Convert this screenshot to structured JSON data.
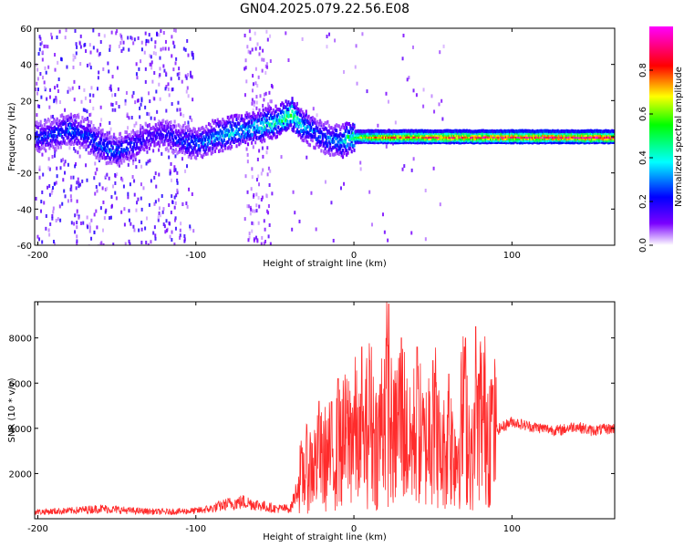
{
  "title": "GN04.2025.079.22.56.E08",
  "colors": {
    "snr_line": "#ff2b2b",
    "colormap": [
      "#ffffff",
      "#7a00ff",
      "#0000ff",
      "#00ffff",
      "#00ff00",
      "#ffff00",
      "#ff0000",
      "#ff00ff"
    ]
  },
  "chart_data": [
    {
      "type": "heatmap",
      "xlabel": "Height of straight line (km)",
      "ylabel": "Frequency (Hz)",
      "xlim": [
        -202,
        165
      ],
      "ylim": [
        -60,
        60
      ],
      "xticks": [
        -200,
        -100,
        0,
        100
      ],
      "yticks": [
        60,
        40,
        20,
        0,
        -20,
        -40,
        -60
      ],
      "grid": false,
      "colorbar": {
        "label": "Normalized spectral amplitude",
        "range": [
          0,
          1
        ],
        "ticks": [
          0.0,
          0.2,
          0.4,
          0.6,
          0.8
        ]
      },
      "ridge": {
        "x": [
          -200,
          -190,
          -180,
          -170,
          -160,
          -150,
          -140,
          -130,
          -120,
          -110,
          -100,
          -90,
          -80,
          -70,
          -60,
          -50,
          -45,
          -40,
          -35,
          -30,
          -20,
          -10,
          0,
          10,
          20,
          40,
          60,
          80,
          100,
          120,
          140,
          165
        ],
        "freq": [
          0,
          2,
          4,
          1,
          -5,
          -8,
          -4,
          0,
          2,
          -2,
          -4,
          0,
          2,
          4,
          6,
          8,
          10,
          13,
          8,
          5,
          0,
          -3,
          0,
          0,
          0,
          0,
          0,
          0,
          0,
          0,
          0,
          0
        ],
        "amplitude": [
          0.25,
          0.28,
          0.3,
          0.28,
          0.28,
          0.3,
          0.22,
          0.18,
          0.2,
          0.25,
          0.3,
          0.35,
          0.38,
          0.38,
          0.4,
          0.45,
          0.5,
          0.55,
          0.45,
          0.35,
          0.3,
          0.35,
          0.6,
          0.75,
          0.8,
          0.85,
          0.88,
          0.9,
          0.92,
          0.93,
          0.94,
          0.95
        ]
      }
    },
    {
      "type": "line",
      "xlabel": "Height of straight line (km)",
      "ylabel": "SNR (10 * v/v)",
      "xlim": [
        -202,
        165
      ],
      "ylim": [
        0,
        9600
      ],
      "xticks": [
        -200,
        -100,
        0,
        100
      ],
      "yticks": [
        2000,
        4000,
        6000,
        8000
      ],
      "grid": false,
      "series": [
        {
          "color": "#ff2b2b",
          "x": [
            -202,
            -180,
            -160,
            -140,
            -120,
            -100,
            -90,
            -80,
            -70,
            -60,
            -50,
            -40,
            -36,
            -34,
            -30,
            -20,
            -10,
            0,
            5,
            10,
            15,
            20,
            25,
            30,
            35,
            40,
            45,
            50,
            55,
            60,
            65,
            70,
            75,
            80,
            85,
            90,
            100,
            110,
            120,
            130,
            140,
            150,
            165
          ],
          "values": [
            300,
            350,
            450,
            350,
            300,
            350,
            450,
            650,
            750,
            600,
            450,
            450,
            1300,
            1800,
            2200,
            2600,
            3000,
            4000,
            2800,
            4500,
            3200,
            5500,
            3300,
            5000,
            3000,
            4200,
            3000,
            5000,
            2600,
            3500,
            2900,
            4800,
            2600,
            4700,
            4200,
            3900,
            4300,
            4100,
            4000,
            3900,
            4100,
            3900,
            4000
          ],
          "spikes": [
            {
              "x": -33,
              "value": 2900
            },
            {
              "x": -22,
              "value": 5200
            },
            {
              "x": -10,
              "value": 6200
            },
            {
              "x": 5,
              "value": 7600
            },
            {
              "x": 10,
              "value": 7000
            },
            {
              "x": 22,
              "value": 9500
            },
            {
              "x": 30,
              "value": 8000
            },
            {
              "x": 40,
              "value": 7600
            },
            {
              "x": 50,
              "value": 7000
            },
            {
              "x": 60,
              "value": 6400
            },
            {
              "x": 70,
              "value": 7600
            },
            {
              "x": 77,
              "value": 8500
            },
            {
              "x": 88,
              "value": 5900
            }
          ]
        }
      ]
    }
  ]
}
